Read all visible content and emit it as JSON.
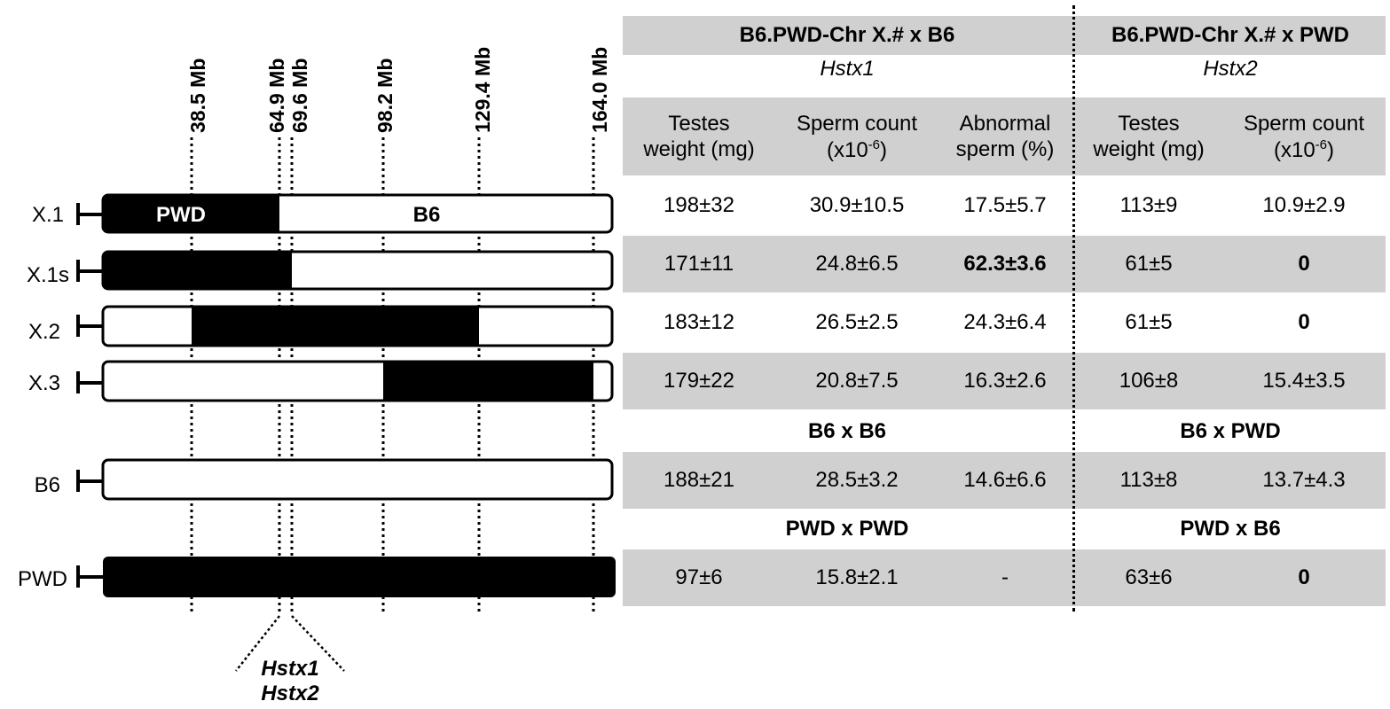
{
  "markers": [
    {
      "label": "38.5 Mb",
      "mb": 38.5
    },
    {
      "label": "64.9 Mb",
      "mb": 64.9
    },
    {
      "label": "69.6 Mb",
      "mb": 69.6
    },
    {
      "label": "98.2 Mb",
      "mb": 98.2
    },
    {
      "label": "129.4 Mb",
      "mb": 129.4
    },
    {
      "label": "164.0 Mb",
      "mb": 164.0
    }
  ],
  "strains": [
    {
      "name": "X.1",
      "pwd_from_mb": 0,
      "pwd_to_mb": 64.9,
      "left_text": "PWD",
      "right_text": "B6"
    },
    {
      "name": "X.1s",
      "pwd_from_mb": 0,
      "pwd_to_mb": 69.6
    },
    {
      "name": "X.2",
      "pwd_from_mb": 38.5,
      "pwd_to_mb": 129.4
    },
    {
      "name": "X.3",
      "pwd_from_mb": 98.2,
      "pwd_to_mb": 164.0
    },
    {
      "name": "B6",
      "pwd_from_mb": null,
      "pwd_to_mb": null
    },
    {
      "name": "PWD",
      "pwd_from_mb": 0,
      "pwd_to_mb": 164.0
    }
  ],
  "locus": {
    "line1": "Hstx1",
    "line2": "Hstx2"
  },
  "table": {
    "cross1_title": "B6.PWD-Chr X.# x B6",
    "cross1_locus": "Hstx1",
    "cross2_title": "B6.PWD-Chr X.# x PWD",
    "cross2_locus": "Hstx2",
    "col_headers": {
      "c1_line1": "Testes",
      "c1_line2": "weight (mg)",
      "c2_line1": "Sperm count",
      "c2_line2_base": "(x10",
      "c2_line2_sup": "-6",
      "c2_line2_end": ")",
      "c3_line1": "Abnormal",
      "c3_line2": "sperm (%)",
      "c4_line1": "Testes",
      "c4_line2": "weight (mg)",
      "c5_line1": "Sperm count",
      "c5_line2_base": "(x10",
      "c5_line2_sup": "-6",
      "c5_line2_end": ")"
    },
    "rows": {
      "x1": [
        "198±32",
        "30.9±10.5",
        "17.5±5.7",
        "113±9",
        "10.9±2.9"
      ],
      "x1s": [
        "171±11",
        "24.8±6.5",
        "62.3±3.6",
        "61±5",
        "0"
      ],
      "x2": [
        "183±12",
        "26.5±2.5",
        "24.3±6.4",
        "61±5",
        "0"
      ],
      "x3": [
        "179±22",
        "20.8±7.5",
        "16.3±2.6",
        "106±8",
        "15.4±3.5"
      ],
      "b6": [
        "188±21",
        "28.5±3.2",
        "14.6±6.6",
        "113±8",
        "13.7±4.3"
      ],
      "pwd": [
        "97±6",
        "15.8±2.1",
        "-",
        "63±6",
        "0"
      ]
    },
    "sub_headers": {
      "b6_left": "B6 x B6",
      "b6_right": "B6 x PWD",
      "pwd_left": "PWD x PWD",
      "pwd_right": "PWD x B6"
    }
  }
}
